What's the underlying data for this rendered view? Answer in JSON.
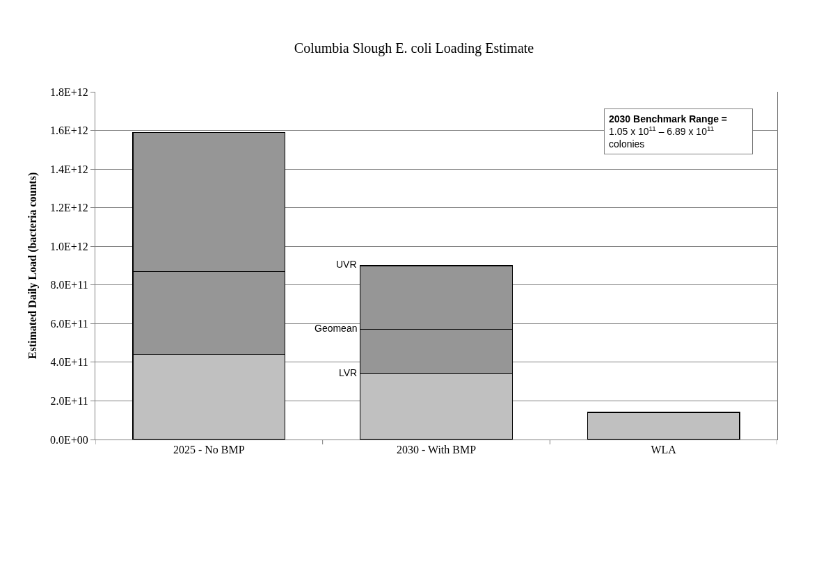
{
  "chart_data": {
    "type": "bar",
    "title": "Columbia Slough E. coli Loading Estimate",
    "ylabel": "Estimated Daily Load (bacteria counts)",
    "categories": [
      "2025 - No BMP",
      "2030 - With BMP",
      "WLA"
    ],
    "stacked": true,
    "series": [
      {
        "color": "#c0c0c0",
        "values": [
          440000000000.0,
          340000000000.0,
          140000000000.0
        ]
      },
      {
        "color": "#969696",
        "values": [
          430000000000.0,
          230000000000.0,
          null
        ]
      },
      {
        "color": "#969696",
        "values": [
          720000000000.0,
          330000000000.0,
          null
        ]
      }
    ],
    "ylim": [
      0,
      1800000000000.0
    ],
    "yticks": [
      {
        "value": 0,
        "label": "0.0E+00"
      },
      {
        "value": 200000000000.0,
        "label": "2.0E+11"
      },
      {
        "value": 400000000000.0,
        "label": "4.0E+11"
      },
      {
        "value": 600000000000.0,
        "label": "6.0E+11"
      },
      {
        "value": 800000000000.0,
        "label": "8.0E+11"
      },
      {
        "value": 1000000000000.0,
        "label": "1.0E+12"
      },
      {
        "value": 1200000000000.0,
        "label": "1.2E+12"
      },
      {
        "value": 1400000000000.0,
        "label": "1.4E+12"
      },
      {
        "value": 1600000000000.0,
        "label": "1.6E+12"
      },
      {
        "value": 1800000000000.0,
        "label": "1.8E+12"
      }
    ],
    "grid": "y",
    "annotations": [
      "UVR",
      "Geomean",
      "LVR",
      "2030 Benchmark Range =\n1.05 x 10$^{11}$ – 6.89 x 10$^{11}$\ncolonies"
    ]
  }
}
